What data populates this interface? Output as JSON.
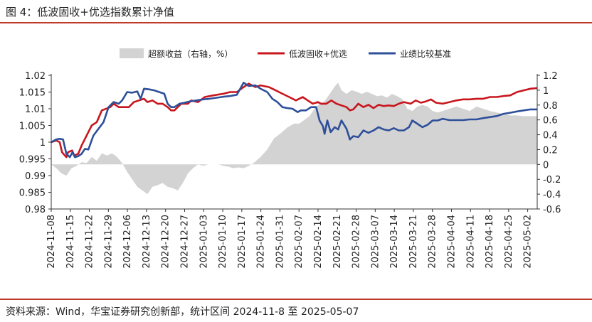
{
  "figure_title": "图 4：低波固收+优选指数累计净值",
  "source_note": "资料来源：Wind，华宝证券研究创新部，统计区间 2024-11-8 至 2025-05-07",
  "colors": {
    "accent": "#c0392b",
    "red_line": "#c8161d",
    "blue_line": "#2e4f9a",
    "area": "#d3d3d3"
  },
  "chart_data": {
    "type": "line",
    "title": "低波固收+优选指数累计净值",
    "x_dates": [
      "2024-11-08",
      "2024-11-15",
      "2024-11-22",
      "2024-11-29",
      "2024-12-06",
      "2024-12-13",
      "2024-12-20",
      "2024-12-27",
      "2025-01-03",
      "2025-01-10",
      "2025-01-17",
      "2025-01-24",
      "2025-01-31",
      "2025-02-07",
      "2025-02-14",
      "2025-02-21",
      "2025-02-28",
      "2025-03-07",
      "2025-03-14",
      "2025-03-21",
      "2025-03-28",
      "2025-04-04",
      "2025-04-11",
      "2025-04-18",
      "2025-04-25",
      "2025-05-02"
    ],
    "y_left": {
      "min": 0.98,
      "max": 1.02,
      "ticks": [
        "1.02",
        "1.015",
        "1.01",
        "1.005",
        "1",
        "0.995",
        "0.99",
        "0.985",
        "0.98"
      ]
    },
    "y_right": {
      "min": -0.6,
      "max": 1.2,
      "ticks": [
        "1.2",
        "1",
        "0.8",
        "0.6",
        "0.4",
        "0.2",
        "0",
        "-0.2",
        "-0.4",
        "-0.6"
      ]
    },
    "legend": [
      {
        "name": "超额收益（右轴，%）",
        "kind": "area"
      },
      {
        "name": "低波固收+优选",
        "kind": "line"
      },
      {
        "name": "业绩比较基准",
        "kind": "line"
      }
    ],
    "series": [
      {
        "name": "低波固收+优选",
        "axis": "left",
        "color": "#c8161d",
        "points": [
          [
            0,
            1.0
          ],
          [
            1.5,
            1.0005
          ],
          [
            2.5,
            1.0
          ],
          [
            3.2,
            0.997
          ],
          [
            4.5,
            0.9955
          ],
          [
            5.0,
            0.997
          ],
          [
            6.2,
            0.9975
          ],
          [
            6.8,
            0.996
          ],
          [
            8.0,
            0.9965
          ],
          [
            9.0,
            0.999
          ],
          [
            10.5,
            1.002
          ],
          [
            12.0,
            1.005
          ],
          [
            13.5,
            1.006
          ],
          [
            15.0,
            1.0095
          ],
          [
            17.5,
            1.0105
          ],
          [
            18.5,
            1.0115
          ],
          [
            20.0,
            1.0105
          ],
          [
            21.5,
            1.0105
          ],
          [
            23.0,
            1.0105
          ],
          [
            24.5,
            1.012
          ],
          [
            26.0,
            1.0125
          ],
          [
            27.5,
            1.013
          ],
          [
            28.5,
            1.012
          ],
          [
            30.0,
            1.0125
          ],
          [
            31.5,
            1.0115
          ],
          [
            33.0,
            1.0115
          ],
          [
            34.5,
            1.0105
          ],
          [
            35.5,
            1.0095
          ],
          [
            36.5,
            1.0095
          ],
          [
            38.5,
            1.0115
          ],
          [
            40.5,
            1.0115
          ],
          [
            41.5,
            1.0125
          ],
          [
            43.5,
            1.012
          ],
          [
            45.5,
            1.0135
          ],
          [
            48.0,
            1.014
          ],
          [
            51.0,
            1.0145
          ],
          [
            53.0,
            1.015
          ],
          [
            55.0,
            1.015
          ],
          [
            57.0,
            1.0165
          ],
          [
            58.5,
            1.0175
          ],
          [
            60.5,
            1.0165
          ],
          [
            62.0,
            1.017
          ],
          [
            64.5,
            1.0165
          ],
          [
            66.5,
            1.0155
          ],
          [
            68.5,
            1.0145
          ],
          [
            70.5,
            1.0135
          ],
          [
            72.5,
            1.0125
          ],
          [
            74.5,
            1.0135
          ],
          [
            76.0,
            1.0125
          ],
          [
            77.5,
            1.0115
          ],
          [
            79.0,
            1.012
          ],
          [
            80.0,
            1.0115
          ],
          [
            81.5,
            1.0115
          ],
          [
            83.0,
            1.0125
          ],
          [
            84.5,
            1.0115
          ],
          [
            86.0,
            1.011
          ],
          [
            87.5,
            1.0105
          ],
          [
            88.5,
            1.0095
          ],
          [
            89.5,
            1.0098
          ],
          [
            91.0,
            1.0115
          ],
          [
            92.5,
            1.0105
          ],
          [
            94.0,
            1.0112
          ],
          [
            95.5,
            1.0102
          ],
          [
            97.0,
            1.0112
          ],
          [
            98.5,
            1.0108
          ],
          [
            100.0,
            1.011
          ],
          [
            101.5,
            1.0108
          ],
          [
            103.0,
            1.0115
          ],
          [
            104.5,
            1.012
          ],
          [
            106.5,
            1.0115
          ],
          [
            108.0,
            1.0125
          ],
          [
            109.5,
            1.0118
          ],
          [
            111.0,
            1.0122
          ],
          [
            112.5,
            1.0128
          ],
          [
            114.0,
            1.0118
          ],
          [
            116.0,
            1.0115
          ],
          [
            118.0,
            1.012
          ],
          [
            120.0,
            1.0125
          ],
          [
            122.0,
            1.0128
          ],
          [
            124.0,
            1.0128
          ],
          [
            126.0,
            1.013
          ],
          [
            128.0,
            1.013
          ],
          [
            130.0,
            1.0135
          ],
          [
            132.0,
            1.0135
          ],
          [
            134.0,
            1.0138
          ],
          [
            136.0,
            1.014
          ],
          [
            138.0,
            1.015
          ],
          [
            140.0,
            1.0155
          ],
          [
            142.0,
            1.016
          ],
          [
            144.0,
            1.0162
          ]
        ]
      },
      {
        "name": "业绩比较基准",
        "axis": "left",
        "color": "#2e4f9a",
        "points": [
          [
            0,
            1.0
          ],
          [
            1.5,
            1.0008
          ],
          [
            2.5,
            1.001
          ],
          [
            3.5,
            1.0008
          ],
          [
            4.5,
            0.9965
          ],
          [
            5.5,
            0.9955
          ],
          [
            6.3,
            0.997
          ],
          [
            7.0,
            0.9955
          ],
          [
            8.0,
            0.9958
          ],
          [
            9.0,
            0.9965
          ],
          [
            10.0,
            0.998
          ],
          [
            11.0,
            0.9978
          ],
          [
            12.5,
            1.002
          ],
          [
            14.0,
            1.004
          ],
          [
            15.5,
            1.006
          ],
          [
            17.0,
            1.0105
          ],
          [
            18.5,
            1.012
          ],
          [
            20.0,
            1.0115
          ],
          [
            21.0,
            1.0125
          ],
          [
            22.5,
            1.015
          ],
          [
            24.0,
            1.0148
          ],
          [
            25.5,
            1.0152
          ],
          [
            26.5,
            1.013
          ],
          [
            27.5,
            1.016
          ],
          [
            29.0,
            1.0158
          ],
          [
            30.5,
            1.0155
          ],
          [
            32.0,
            1.015
          ],
          [
            33.5,
            1.0145
          ],
          [
            34.5,
            1.0115
          ],
          [
            35.5,
            1.0105
          ],
          [
            36.5,
            1.0105
          ],
          [
            38.0,
            1.0115
          ],
          [
            39.5,
            1.0118
          ],
          [
            41.0,
            1.0122
          ],
          [
            43.0,
            1.0125
          ],
          [
            45.0,
            1.0128
          ],
          [
            47.0,
            1.013
          ],
          [
            49.0,
            1.0133
          ],
          [
            51.0,
            1.0136
          ],
          [
            53.0,
            1.0138
          ],
          [
            55.0,
            1.0142
          ],
          [
            57.0,
            1.0178
          ],
          [
            58.5,
            1.0168
          ],
          [
            60.5,
            1.017
          ],
          [
            62.0,
            1.016
          ],
          [
            64.0,
            1.015
          ],
          [
            65.5,
            1.013
          ],
          [
            67.0,
            1.012
          ],
          [
            68.5,
            1.0105
          ],
          [
            70.0,
            1.0102
          ],
          [
            71.5,
            1.01
          ],
          [
            73.0,
            1.009
          ],
          [
            74.0,
            1.0095
          ],
          [
            75.5,
            1.0095
          ],
          [
            77.0,
            1.0105
          ],
          [
            78.5,
            1.0105
          ],
          [
            79.5,
            1.0065
          ],
          [
            80.5,
            1.0048
          ],
          [
            81.0,
            1.0025
          ],
          [
            81.8,
            1.0065
          ],
          [
            82.8,
            1.003
          ],
          [
            84.0,
            1.0045
          ],
          [
            85.0,
            1.0038
          ],
          [
            86.0,
            1.0065
          ],
          [
            87.5,
            1.004
          ],
          [
            88.5,
            1.0008
          ],
          [
            89.5,
            1.0018
          ],
          [
            91.0,
            1.0015
          ],
          [
            92.5,
            1.0035
          ],
          [
            94.0,
            1.0028
          ],
          [
            95.5,
            1.0035
          ],
          [
            97.0,
            1.0045
          ],
          [
            98.5,
            1.0038
          ],
          [
            100.0,
            1.0035
          ],
          [
            101.5,
            1.0042
          ],
          [
            103.0,
            1.0035
          ],
          [
            104.5,
            1.0035
          ],
          [
            106.0,
            1.0045
          ],
          [
            107.0,
            1.0065
          ],
          [
            108.5,
            1.0055
          ],
          [
            110.0,
            1.0045
          ],
          [
            111.5,
            1.0052
          ],
          [
            113.0,
            1.0065
          ],
          [
            114.5,
            1.0065
          ],
          [
            116.0,
            1.007
          ],
          [
            118.0,
            1.0066
          ],
          [
            120.0,
            1.0066
          ],
          [
            122.0,
            1.0066
          ],
          [
            124.0,
            1.0068
          ],
          [
            126.0,
            1.0068
          ],
          [
            128.0,
            1.0072
          ],
          [
            130.0,
            1.0075
          ],
          [
            132.0,
            1.0078
          ],
          [
            134.0,
            1.0085
          ],
          [
            136.0,
            1.0088
          ],
          [
            138.0,
            1.0092
          ],
          [
            140.0,
            1.0095
          ],
          [
            142.0,
            1.0098
          ],
          [
            144.0,
            1.0098
          ]
        ]
      },
      {
        "name": "超额收益（右轴，%）",
        "axis": "right",
        "color": "#d3d3d3",
        "points": [
          [
            0,
            0.0
          ],
          [
            1.5,
            -0.05
          ],
          [
            3.0,
            -0.12
          ],
          [
            4.5,
            -0.15
          ],
          [
            6.0,
            -0.05
          ],
          [
            7.5,
            -0.02
          ],
          [
            9.0,
            0.03
          ],
          [
            10.5,
            0.02
          ],
          [
            12.0,
            0.1
          ],
          [
            13.5,
            0.05
          ],
          [
            15.0,
            0.15
          ],
          [
            16.5,
            0.12
          ],
          [
            18.0,
            0.15
          ],
          [
            19.5,
            0.1
          ],
          [
            21.0,
            0.02
          ],
          [
            22.5,
            -0.1
          ],
          [
            24.0,
            -0.2
          ],
          [
            25.5,
            -0.3
          ],
          [
            27.0,
            -0.35
          ],
          [
            28.5,
            -0.4
          ],
          [
            30.0,
            -0.3
          ],
          [
            31.5,
            -0.28
          ],
          [
            33.0,
            -0.25
          ],
          [
            34.5,
            -0.3
          ],
          [
            36.0,
            -0.32
          ],
          [
            37.5,
            -0.35
          ],
          [
            39.0,
            -0.25
          ],
          [
            40.5,
            -0.12
          ],
          [
            42.0,
            -0.05
          ],
          [
            43.5,
            0.0
          ],
          [
            45.0,
            -0.02
          ],
          [
            46.5,
            0.0
          ],
          [
            48.0,
            0.0
          ],
          [
            49.5,
            0.0
          ],
          [
            51.0,
            -0.02
          ],
          [
            52.5,
            -0.03
          ],
          [
            54.0,
            -0.05
          ],
          [
            55.5,
            -0.04
          ],
          [
            57.0,
            -0.05
          ],
          [
            58.5,
            -0.02
          ],
          [
            60.0,
            0.02
          ],
          [
            62.0,
            0.1
          ],
          [
            64.0,
            0.2
          ],
          [
            66.0,
            0.35
          ],
          [
            68.0,
            0.42
          ],
          [
            70.0,
            0.5
          ],
          [
            72.0,
            0.55
          ],
          [
            73.5,
            0.55
          ],
          [
            75.0,
            0.6
          ],
          [
            76.5,
            0.65
          ],
          [
            78.0,
            0.75
          ],
          [
            79.5,
            0.82
          ],
          [
            81.0,
            0.85
          ],
          [
            82.5,
            0.95
          ],
          [
            84.0,
            1.05
          ],
          [
            85.0,
            1.1
          ],
          [
            86.0,
            1.0
          ],
          [
            87.5,
            0.95
          ],
          [
            89.0,
            1.0
          ],
          [
            90.5,
            0.98
          ],
          [
            92.0,
            0.95
          ],
          [
            93.5,
            0.98
          ],
          [
            95.0,
            0.95
          ],
          [
            96.5,
            0.92
          ],
          [
            98.0,
            0.93
          ],
          [
            99.5,
            0.9
          ],
          [
            101.0,
            0.95
          ],
          [
            102.5,
            0.92
          ],
          [
            104.0,
            0.88
          ],
          [
            105.5,
            0.75
          ],
          [
            107.0,
            0.72
          ],
          [
            108.5,
            0.78
          ],
          [
            110.0,
            0.8
          ],
          [
            111.5,
            0.78
          ],
          [
            113.0,
            0.72
          ],
          [
            114.5,
            0.7
          ],
          [
            116.0,
            0.72
          ],
          [
            118.0,
            0.75
          ],
          [
            120.0,
            0.78
          ],
          [
            122.0,
            0.75
          ],
          [
            124.0,
            0.72
          ],
          [
            126.0,
            0.78
          ],
          [
            128.0,
            0.75
          ],
          [
            130.0,
            0.72
          ],
          [
            132.0,
            0.7
          ],
          [
            134.0,
            0.68
          ],
          [
            136.0,
            0.66
          ],
          [
            138.0,
            0.66
          ],
          [
            140.0,
            0.65
          ],
          [
            142.0,
            0.65
          ],
          [
            144.0,
            0.65
          ]
        ]
      }
    ]
  }
}
